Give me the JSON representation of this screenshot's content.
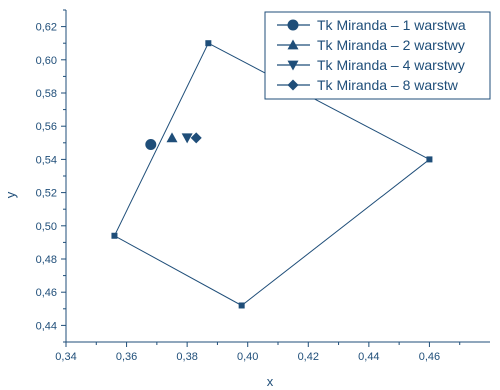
{
  "chart_data": {
    "type": "scatter",
    "xlabel": "x",
    "ylabel": "y",
    "xlim": [
      0.34,
      0.48
    ],
    "ylim": [
      0.43,
      0.63
    ],
    "x_ticks": [
      "0,34",
      "0,36",
      "0,38",
      "0,40",
      "0,42",
      "0,44",
      "0,46"
    ],
    "x_tick_values": [
      0.34,
      0.36,
      0.38,
      0.4,
      0.42,
      0.44,
      0.46
    ],
    "y_ticks": [
      "0,44",
      "0,46",
      "0,48",
      "0,50",
      "0,52",
      "0,54",
      "0,56",
      "0,58",
      "0,60",
      "0,62"
    ],
    "y_tick_values": [
      0.44,
      0.46,
      0.48,
      0.5,
      0.52,
      0.54,
      0.56,
      0.58,
      0.6,
      0.62
    ],
    "color": "#1f4e79",
    "polygon": [
      {
        "x": 0.387,
        "y": 0.61
      },
      {
        "x": 0.46,
        "y": 0.54
      },
      {
        "x": 0.398,
        "y": 0.452
      },
      {
        "x": 0.356,
        "y": 0.494
      }
    ],
    "series": [
      {
        "name": "Tk Miranda  – 1 warstwa",
        "marker": "circle",
        "x": [
          0.368
        ],
        "y": [
          0.549
        ]
      },
      {
        "name": "Tk Miranda  – 2 warstwy",
        "marker": "triangle-up",
        "x": [
          0.375
        ],
        "y": [
          0.553
        ]
      },
      {
        "name": "Tk Miranda  – 4 warstwy",
        "marker": "triangle-down",
        "x": [
          0.38
        ],
        "y": [
          0.553
        ]
      },
      {
        "name": "Tk Miranda  – 8 warstw",
        "marker": "diamond",
        "x": [
          0.383
        ],
        "y": [
          0.553
        ]
      }
    ],
    "legend_position": "top-right",
    "grid": false
  }
}
